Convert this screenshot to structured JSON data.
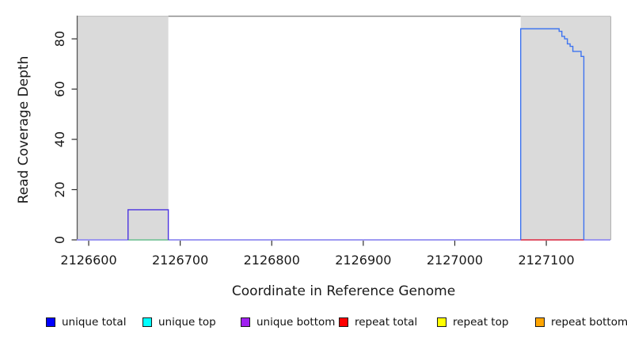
{
  "chart_data": {
    "type": "area",
    "title": "",
    "xlabel": "Coordinate in Reference Genome",
    "ylabel": "Read Coverage Depth",
    "xlim": [
      2126587,
      2127170
    ],
    "ylim": [
      0,
      89
    ],
    "x_ticks": [
      2126600,
      2126700,
      2126800,
      2126900,
      2127000,
      2127100
    ],
    "y_ticks": [
      0,
      20,
      40,
      60,
      80
    ],
    "grid": false,
    "legend_position": "bottom",
    "colors": {
      "highlight_fill": "#dadada",
      "box_top": "#8c8c8c",
      "box_left": "#565656",
      "box_right": "#b5b5b5",
      "tick": "#2e2e2e",
      "tick_label": "#1a1a1a"
    },
    "highlight_regions": [
      {
        "name": "left-gray-region",
        "x0": 2126587,
        "x1": 2126687
      },
      {
        "name": "right-gray-region",
        "x0": 2127072,
        "x1": 2127170
      }
    ],
    "series": [
      {
        "name": "baseline",
        "color": "#918bf0",
        "points": [
          [
            2126587,
            0
          ],
          [
            2127170,
            0
          ]
        ]
      },
      {
        "name": "unique-top-segment",
        "color": "#7fd68c",
        "points": [
          [
            2126643,
            0
          ],
          [
            2126687,
            0
          ]
        ]
      },
      {
        "name": "repeat-total-segment",
        "color": "#f23c3c",
        "points": [
          [
            2127072,
            0
          ],
          [
            2127141,
            0
          ]
        ]
      },
      {
        "name": "unique-bottom-peak",
        "color": "#4b33e0",
        "points": [
          [
            2126643,
            0
          ],
          [
            2126643,
            12
          ],
          [
            2126687,
            12
          ],
          [
            2126687,
            0
          ]
        ]
      },
      {
        "name": "unique-total-peak",
        "color": "#3e74f0",
        "points": [
          [
            2127072,
            0
          ],
          [
            2127072,
            84
          ],
          [
            2127114,
            84
          ],
          [
            2127114,
            83
          ],
          [
            2127117,
            83
          ],
          [
            2127117,
            81
          ],
          [
            2127120,
            81
          ],
          [
            2127120,
            80
          ],
          [
            2127123,
            80
          ],
          [
            2127123,
            78
          ],
          [
            2127126,
            78
          ],
          [
            2127126,
            77
          ],
          [
            2127129,
            77
          ],
          [
            2127129,
            75
          ],
          [
            2127138,
            75
          ],
          [
            2127138,
            73
          ],
          [
            2127141,
            73
          ],
          [
            2127141,
            0
          ]
        ]
      }
    ],
    "legend": [
      {
        "label": "unique total",
        "color": "#0000ff"
      },
      {
        "label": "unique top",
        "color": "#00ffff"
      },
      {
        "label": "unique bottom",
        "color": "#a020f0"
      },
      {
        "label": "repeat total",
        "color": "#ff0000"
      },
      {
        "label": "repeat top",
        "color": "#ffff00"
      },
      {
        "label": "repeat bottom",
        "color": "#ffa500"
      }
    ]
  }
}
